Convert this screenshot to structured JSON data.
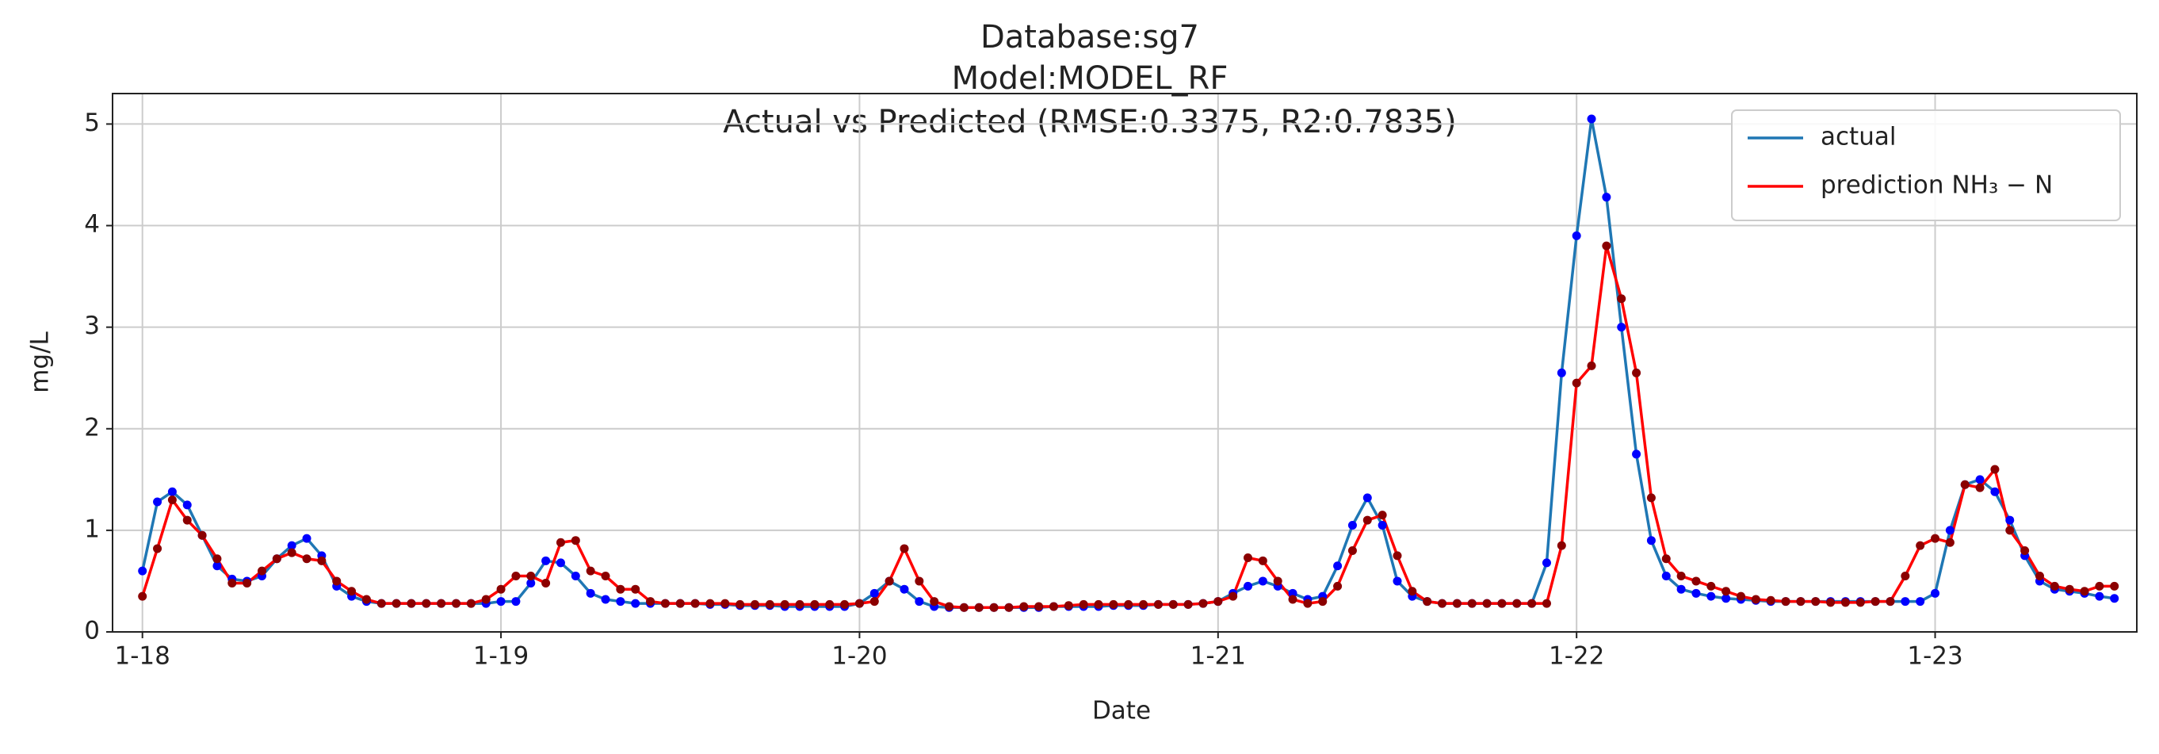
{
  "chart_data": {
    "type": "line",
    "title_lines": [
      "Database:sg7",
      "Model:MODEL_RF",
      "Actual vs Predicted (RMSE:0.3375, R2:0.7835)"
    ],
    "x_label": "Date",
    "y_label": "mg/L",
    "x": [
      0,
      1,
      2,
      3,
      4,
      5,
      6,
      7,
      8,
      9,
      10,
      11,
      12,
      13,
      14,
      15,
      16,
      17,
      18,
      19,
      20,
      21,
      22,
      23,
      24,
      25,
      26,
      27,
      28,
      29,
      30,
      31,
      32,
      33,
      34,
      35,
      36,
      37,
      38,
      39,
      40,
      41,
      42,
      43,
      44,
      45,
      46,
      47,
      48,
      49,
      50,
      51,
      52,
      53,
      54,
      55,
      56,
      57,
      58,
      59,
      60,
      61,
      62,
      63,
      64,
      65,
      66,
      67,
      68,
      69,
      70,
      71,
      72,
      73,
      74,
      75,
      76,
      77,
      78,
      79,
      80,
      81,
      82,
      83,
      84,
      85,
      86,
      87,
      88,
      89,
      90,
      91,
      92,
      93,
      94,
      95,
      96,
      97,
      98,
      99,
      100,
      101,
      102,
      103,
      104,
      105,
      106,
      107,
      108,
      109,
      110,
      111,
      112,
      113,
      114,
      115,
      116,
      117,
      118,
      119,
      120,
      121,
      122,
      123,
      124,
      125,
      126,
      127,
      128,
      129,
      130,
      131,
      132
    ],
    "series": [
      {
        "name": "actual",
        "color": "#1f77b4",
        "marker_color": "#0000ff",
        "values": [
          0.6,
          1.28,
          1.38,
          1.25,
          0.95,
          0.65,
          0.52,
          0.5,
          0.55,
          0.72,
          0.85,
          0.92,
          0.75,
          0.45,
          0.35,
          0.3,
          0.28,
          0.28,
          0.28,
          0.28,
          0.28,
          0.28,
          0.28,
          0.28,
          0.3,
          0.3,
          0.48,
          0.7,
          0.68,
          0.55,
          0.38,
          0.32,
          0.3,
          0.28,
          0.28,
          0.28,
          0.28,
          0.28,
          0.27,
          0.27,
          0.26,
          0.26,
          0.26,
          0.25,
          0.25,
          0.25,
          0.25,
          0.25,
          0.28,
          0.38,
          0.5,
          0.42,
          0.3,
          0.25,
          0.24,
          0.24,
          0.24,
          0.24,
          0.24,
          0.24,
          0.24,
          0.25,
          0.25,
          0.25,
          0.25,
          0.26,
          0.26,
          0.26,
          0.27,
          0.27,
          0.27,
          0.28,
          0.3,
          0.38,
          0.45,
          0.5,
          0.45,
          0.38,
          0.32,
          0.35,
          0.65,
          1.05,
          1.32,
          1.05,
          0.5,
          0.35,
          0.3,
          0.28,
          0.28,
          0.28,
          0.28,
          0.28,
          0.28,
          0.28,
          0.68,
          2.55,
          3.9,
          5.05,
          4.28,
          3.0,
          1.75,
          0.9,
          0.55,
          0.42,
          0.38,
          0.35,
          0.33,
          0.32,
          0.31,
          0.3,
          0.3,
          0.3,
          0.3,
          0.3,
          0.3,
          0.3,
          0.3,
          0.3,
          0.3,
          0.3,
          0.38,
          1.0,
          1.45,
          1.5,
          1.38,
          1.1,
          0.75,
          0.5,
          0.42,
          0.4,
          0.38,
          0.35,
          0.33
        ]
      },
      {
        "name": "prediction NH₃ − N",
        "color": "#ff0000",
        "marker_color": "#8b0000",
        "values": [
          0.35,
          0.82,
          1.3,
          1.1,
          0.95,
          0.72,
          0.48,
          0.48,
          0.6,
          0.72,
          0.78,
          0.72,
          0.7,
          0.5,
          0.4,
          0.32,
          0.28,
          0.28,
          0.28,
          0.28,
          0.28,
          0.28,
          0.28,
          0.32,
          0.42,
          0.55,
          0.55,
          0.48,
          0.88,
          0.9,
          0.6,
          0.55,
          0.42,
          0.42,
          0.3,
          0.28,
          0.28,
          0.28,
          0.28,
          0.28,
          0.27,
          0.27,
          0.27,
          0.27,
          0.27,
          0.27,
          0.27,
          0.27,
          0.28,
          0.3,
          0.5,
          0.82,
          0.5,
          0.3,
          0.25,
          0.24,
          0.24,
          0.24,
          0.24,
          0.25,
          0.25,
          0.25,
          0.26,
          0.27,
          0.27,
          0.27,
          0.27,
          0.27,
          0.27,
          0.27,
          0.27,
          0.28,
          0.3,
          0.35,
          0.73,
          0.7,
          0.5,
          0.32,
          0.28,
          0.3,
          0.45,
          0.8,
          1.1,
          1.15,
          0.75,
          0.4,
          0.3,
          0.28,
          0.28,
          0.28,
          0.28,
          0.28,
          0.28,
          0.28,
          0.28,
          0.85,
          2.45,
          2.62,
          3.8,
          3.28,
          2.55,
          1.32,
          0.72,
          0.55,
          0.5,
          0.45,
          0.4,
          0.35,
          0.32,
          0.31,
          0.3,
          0.3,
          0.3,
          0.29,
          0.29,
          0.29,
          0.3,
          0.3,
          0.55,
          0.85,
          0.92,
          0.88,
          1.45,
          1.42,
          1.6,
          1.0,
          0.8,
          0.55,
          0.45,
          0.42,
          0.4,
          0.45,
          0.45
        ]
      }
    ],
    "xlim": [
      -2,
      133.5
    ],
    "xticks": [
      {
        "value": 0,
        "label": "1-18"
      },
      {
        "value": 24,
        "label": "1-19"
      },
      {
        "value": 48,
        "label": "1-20"
      },
      {
        "value": 72,
        "label": "1-21"
      },
      {
        "value": 96,
        "label": "1-22"
      },
      {
        "value": 120,
        "label": "1-23"
      }
    ],
    "ylim": [
      0,
      5.3
    ],
    "yticks": [
      0,
      1,
      2,
      3,
      4,
      5
    ],
    "grid": true,
    "legend": "upper right"
  }
}
